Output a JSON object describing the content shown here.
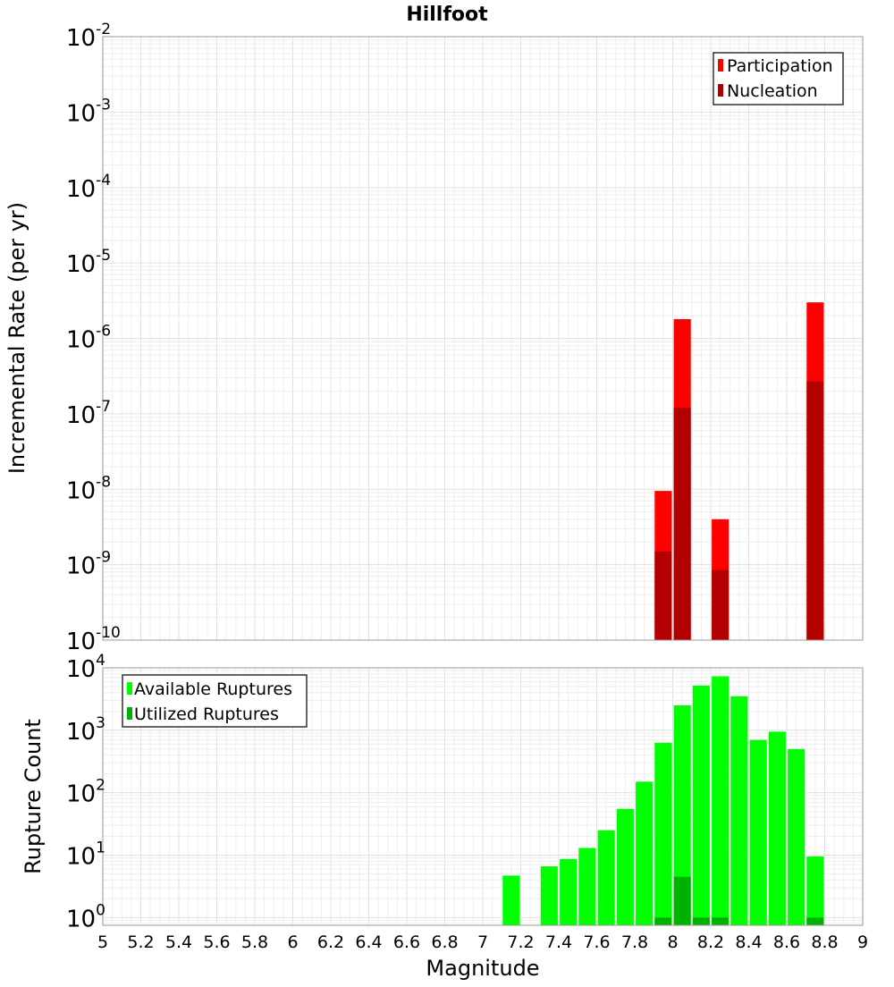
{
  "chart_data": [
    {
      "type": "bar",
      "title": "Hillfoot",
      "xlabel": "",
      "ylabel": "Incremental Rate (per yr)",
      "yscale": "log",
      "xlim": [
        5,
        9
      ],
      "ylim": [
        1e-10,
        0.01
      ],
      "ytick_exponents": [
        -10,
        -9,
        -8,
        -7,
        -6,
        -5,
        -4,
        -3,
        -2
      ],
      "grid": true,
      "legend_position": "top-right",
      "bar_width": 0.09,
      "series": [
        {
          "name": "Participation",
          "color": "#ff0000",
          "points": [
            {
              "x": 7.95,
              "y": 9.5e-09
            },
            {
              "x": 8.05,
              "y": 1.8e-06
            },
            {
              "x": 8.25,
              "y": 4e-09
            },
            {
              "x": 8.75,
              "y": 3e-06
            }
          ]
        },
        {
          "name": "Nucleation",
          "color": "#b20000",
          "points": [
            {
              "x": 7.95,
              "y": 1.5e-09
            },
            {
              "x": 8.05,
              "y": 1.2e-07
            },
            {
              "x": 8.25,
              "y": 8.5e-10
            },
            {
              "x": 8.75,
              "y": 2.7e-07
            }
          ]
        }
      ]
    },
    {
      "type": "bar",
      "title": "",
      "xlabel": "Magnitude",
      "ylabel": "Rupture Count",
      "yscale": "log",
      "xlim": [
        5,
        9
      ],
      "ylim": [
        0.75,
        10000
      ],
      "ytick_exponents": [
        0,
        1,
        2,
        3,
        4
      ],
      "xticks": [
        "5",
        "5.2",
        "5.4",
        "5.6",
        "5.8",
        "6",
        "6.2",
        "6.4",
        "6.6",
        "6.8",
        "7",
        "7.2",
        "7.4",
        "7.6",
        "7.8",
        "8",
        "8.2",
        "8.4",
        "8.6",
        "8.8",
        "9"
      ],
      "grid": true,
      "legend_position": "top-left",
      "bar_width": 0.09,
      "series": [
        {
          "name": "Available Ruptures",
          "color": "#00ff00",
          "points": [
            {
              "x": 7.15,
              "y": 4.7
            },
            {
              "x": 7.35,
              "y": 6.6
            },
            {
              "x": 7.45,
              "y": 8.6
            },
            {
              "x": 7.55,
              "y": 13
            },
            {
              "x": 7.65,
              "y": 25
            },
            {
              "x": 7.75,
              "y": 55
            },
            {
              "x": 7.85,
              "y": 150
            },
            {
              "x": 7.95,
              "y": 630
            },
            {
              "x": 8.05,
              "y": 2500
            },
            {
              "x": 8.15,
              "y": 5200
            },
            {
              "x": 8.25,
              "y": 7300
            },
            {
              "x": 8.35,
              "y": 3500
            },
            {
              "x": 8.45,
              "y": 700
            },
            {
              "x": 8.55,
              "y": 950
            },
            {
              "x": 8.65,
              "y": 500
            },
            {
              "x": 8.75,
              "y": 9.5
            }
          ]
        },
        {
          "name": "Utilized Ruptures",
          "color": "#00b200",
          "points": [
            {
              "x": 7.95,
              "y": 1
            },
            {
              "x": 8.05,
              "y": 4.5
            },
            {
              "x": 8.15,
              "y": 1
            },
            {
              "x": 8.25,
              "y": 1
            },
            {
              "x": 8.75,
              "y": 1
            }
          ]
        }
      ]
    }
  ]
}
